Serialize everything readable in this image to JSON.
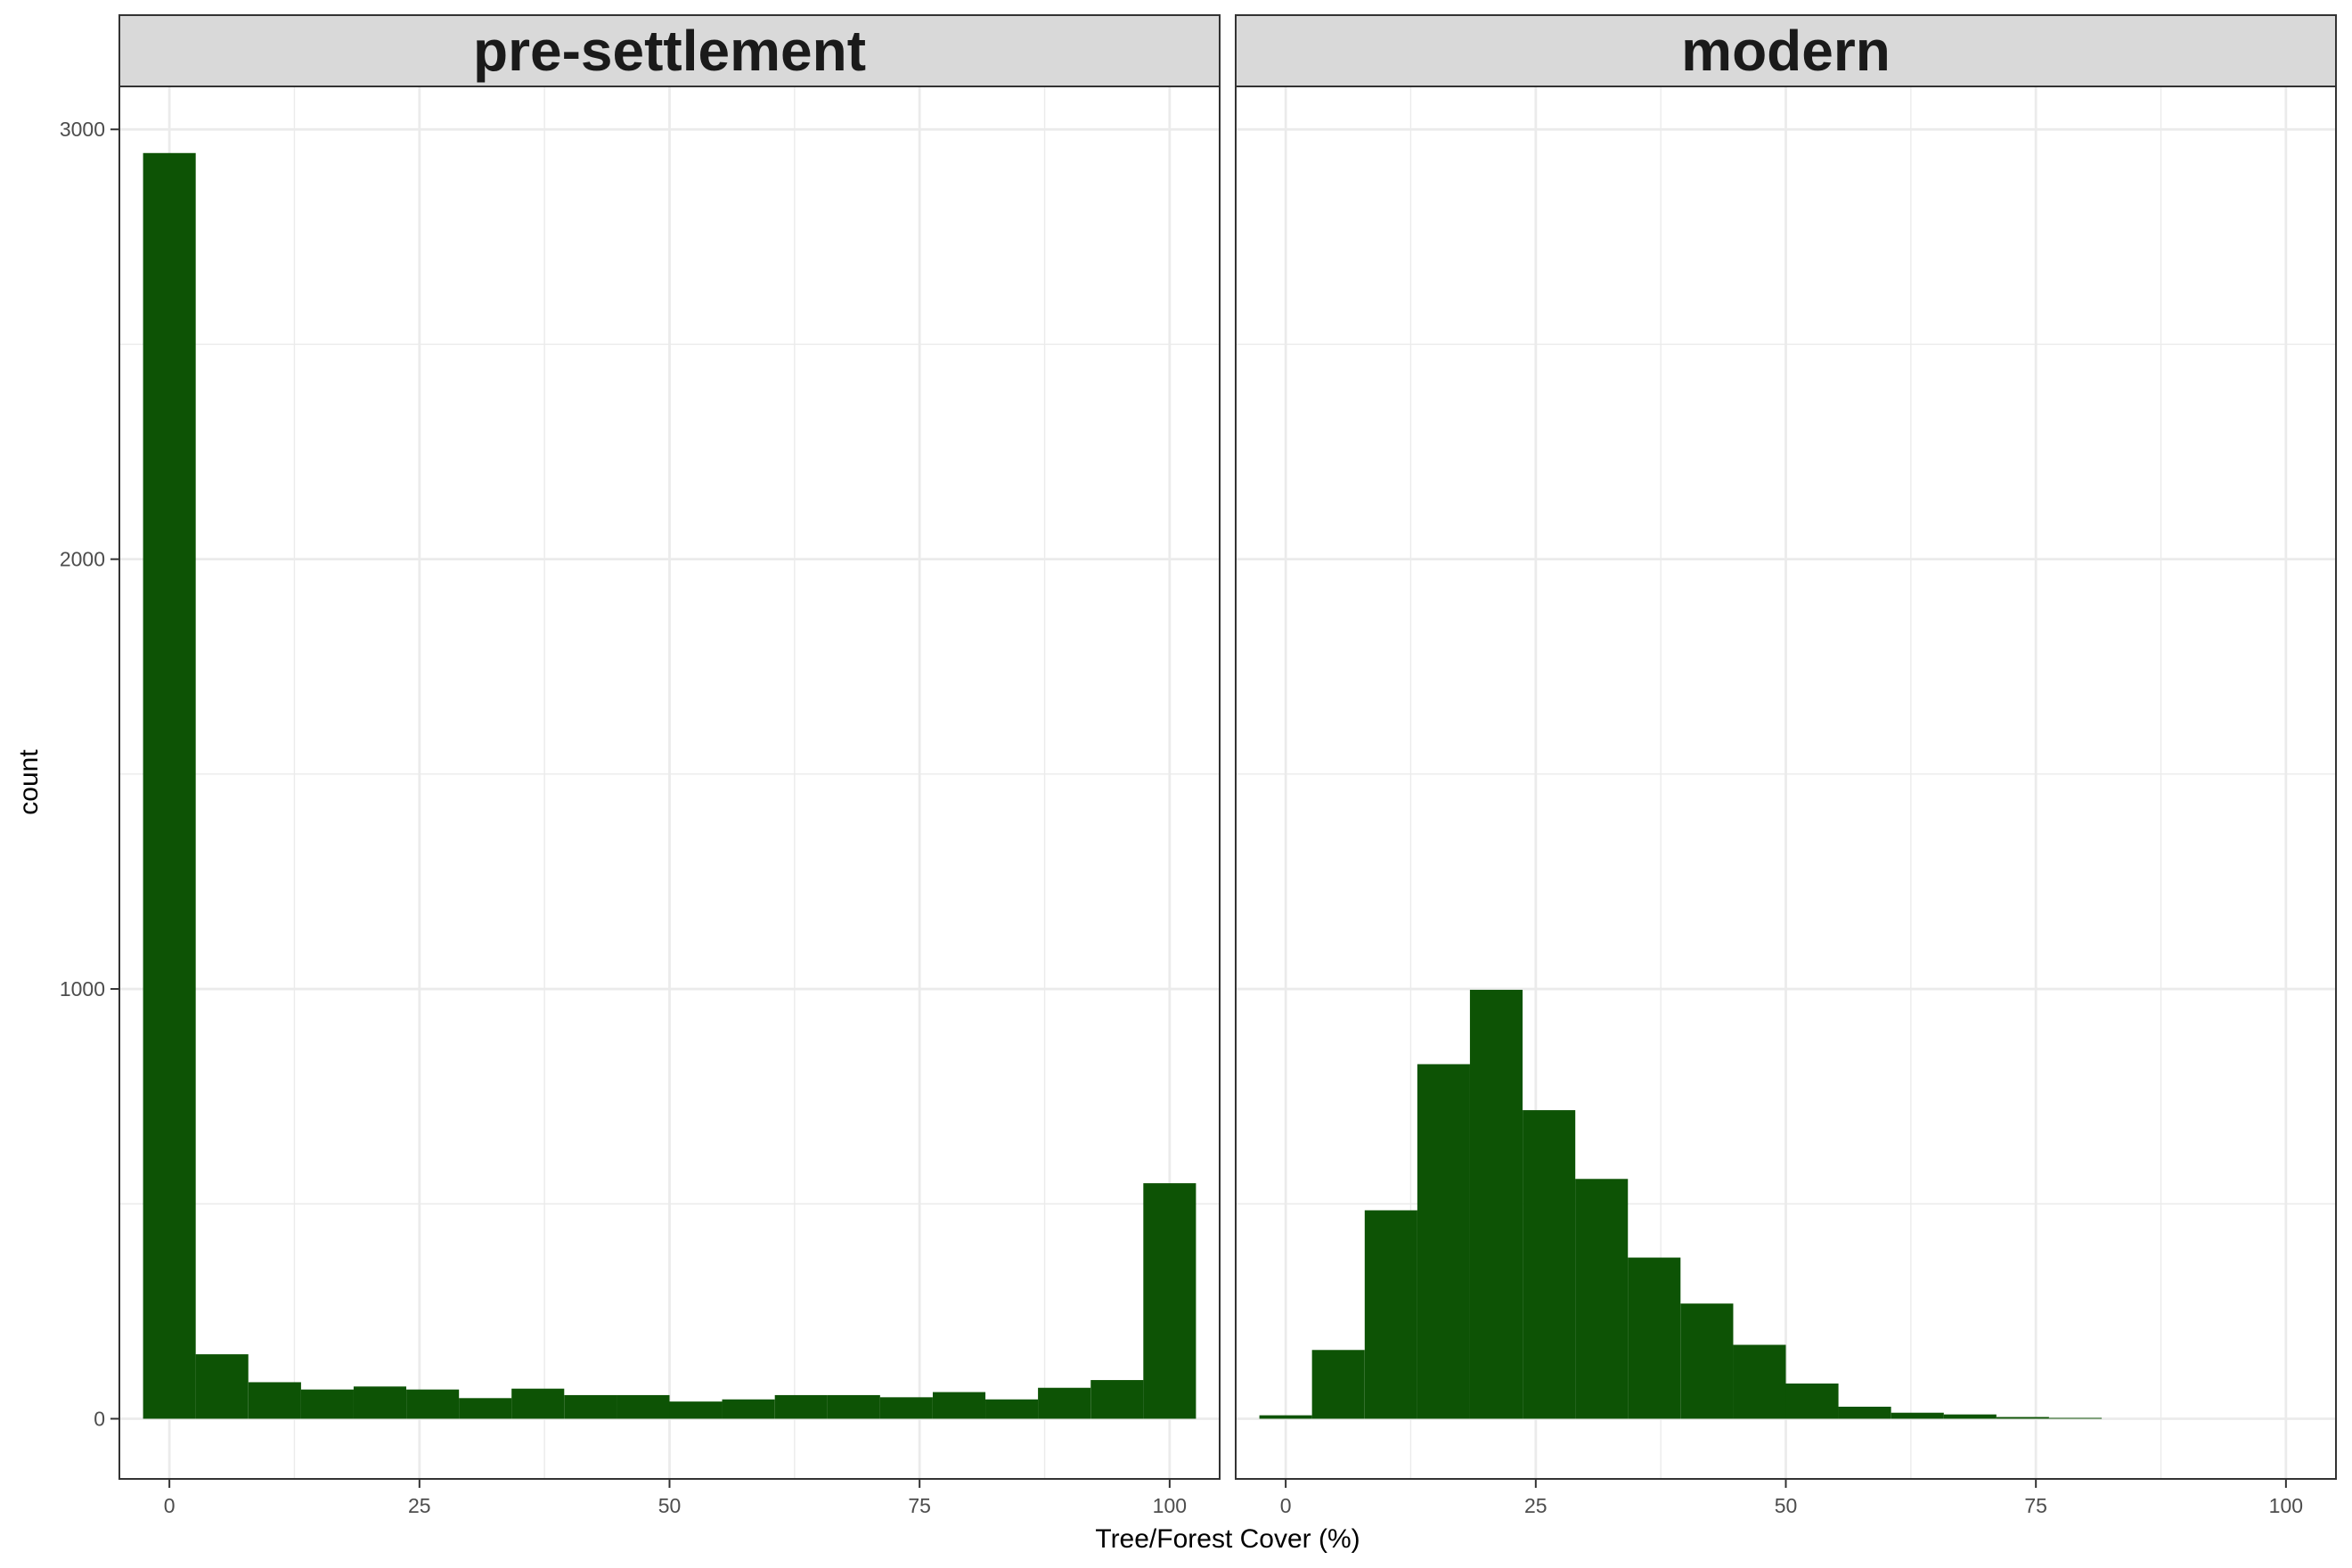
{
  "chart_data": {
    "type": "bar",
    "xlabel": "Tree/Forest Cover (%)",
    "ylabel": "count",
    "xlim": [
      -5,
      105
    ],
    "ylim": [
      -140,
      3100
    ],
    "x_ticks": [
      0,
      25,
      50,
      75,
      100
    ],
    "y_ticks": [
      0,
      1000,
      2000,
      3000
    ],
    "grid": true,
    "bar_color": "#0d5305",
    "facets": [
      {
        "title": "pre-settlement",
        "bins": [
          {
            "x": 0,
            "count": 2945
          },
          {
            "x": 5.26,
            "count": 150
          },
          {
            "x": 10.53,
            "count": 85
          },
          {
            "x": 15.79,
            "count": 68
          },
          {
            "x": 21.05,
            "count": 75
          },
          {
            "x": 26.32,
            "count": 68
          },
          {
            "x": 31.58,
            "count": 48
          },
          {
            "x": 36.84,
            "count": 70
          },
          {
            "x": 42.11,
            "count": 55
          },
          {
            "x": 47.37,
            "count": 55
          },
          {
            "x": 52.63,
            "count": 40
          },
          {
            "x": 57.89,
            "count": 45
          },
          {
            "x": 63.16,
            "count": 55
          },
          {
            "x": 68.42,
            "count": 55
          },
          {
            "x": 73.68,
            "count": 50
          },
          {
            "x": 78.95,
            "count": 62
          },
          {
            "x": 84.21,
            "count": 45
          },
          {
            "x": 89.47,
            "count": 72
          },
          {
            "x": 94.74,
            "count": 90
          },
          {
            "x": 100,
            "count": 548
          }
        ]
      },
      {
        "title": "modern",
        "bins": [
          {
            "x": 0,
            "count": 8
          },
          {
            "x": 5.26,
            "count": 160
          },
          {
            "x": 10.53,
            "count": 485
          },
          {
            "x": 15.79,
            "count": 825
          },
          {
            "x": 21.05,
            "count": 998
          },
          {
            "x": 26.32,
            "count": 718
          },
          {
            "x": 31.58,
            "count": 558
          },
          {
            "x": 36.84,
            "count": 375
          },
          {
            "x": 42.11,
            "count": 268
          },
          {
            "x": 47.37,
            "count": 172
          },
          {
            "x": 52.63,
            "count": 82
          },
          {
            "x": 57.89,
            "count": 28
          },
          {
            "x": 63.16,
            "count": 14
          },
          {
            "x": 68.42,
            "count": 10
          },
          {
            "x": 73.68,
            "count": 4
          },
          {
            "x": 78.95,
            "count": 2
          },
          {
            "x": 84.21,
            "count": 0
          },
          {
            "x": 89.47,
            "count": 0
          },
          {
            "x": 94.74,
            "count": 0
          },
          {
            "x": 100,
            "count": 0
          }
        ]
      }
    ]
  }
}
